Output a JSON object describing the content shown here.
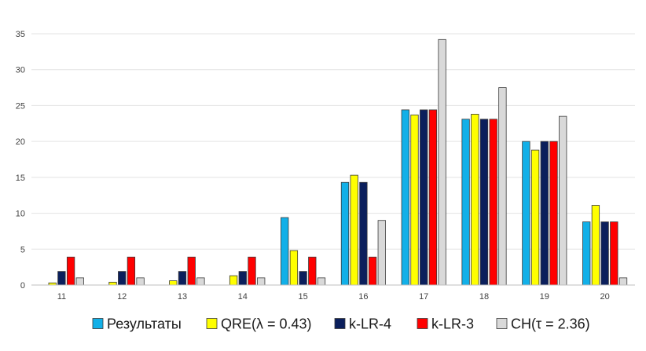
{
  "chart_data": {
    "type": "bar",
    "title": "",
    "xlabel": "",
    "ylabel": "",
    "categories": [
      "11",
      "12",
      "13",
      "14",
      "15",
      "16",
      "17",
      "18",
      "19",
      "20"
    ],
    "ylim": [
      0,
      35
    ],
    "yticks": [
      0,
      5,
      10,
      15,
      20,
      25,
      30,
      35
    ],
    "grid": true,
    "legend_position": "bottom",
    "series": [
      {
        "name": "Результаты",
        "color": "#12b0e8",
        "values": [
          0,
          0,
          0,
          0,
          9.4,
          14.3,
          24.4,
          23.1,
          20.0,
          8.8
        ]
      },
      {
        "name": "QRE(λ = 0.43)",
        "color": "#ffff00",
        "values": [
          0.3,
          0.4,
          0.6,
          1.3,
          4.8,
          15.3,
          23.7,
          23.8,
          18.8,
          11.1
        ]
      },
      {
        "name": "k-LR-4",
        "color": "#0b1f5c",
        "values": [
          1.9,
          1.9,
          1.9,
          1.9,
          1.9,
          14.3,
          24.4,
          23.1,
          20.0,
          8.8
        ]
      },
      {
        "name": "k-LR-3",
        "color": "#ff0000",
        "values": [
          3.9,
          3.9,
          3.9,
          3.9,
          3.9,
          3.9,
          24.4,
          23.1,
          20.0,
          8.8
        ]
      },
      {
        "name": "CH(τ = 2.36)",
        "color": "#d9d9d9",
        "values": [
          1.0,
          1.0,
          1.0,
          1.0,
          1.0,
          9.0,
          34.2,
          27.5,
          23.5,
          1.0
        ]
      }
    ]
  }
}
